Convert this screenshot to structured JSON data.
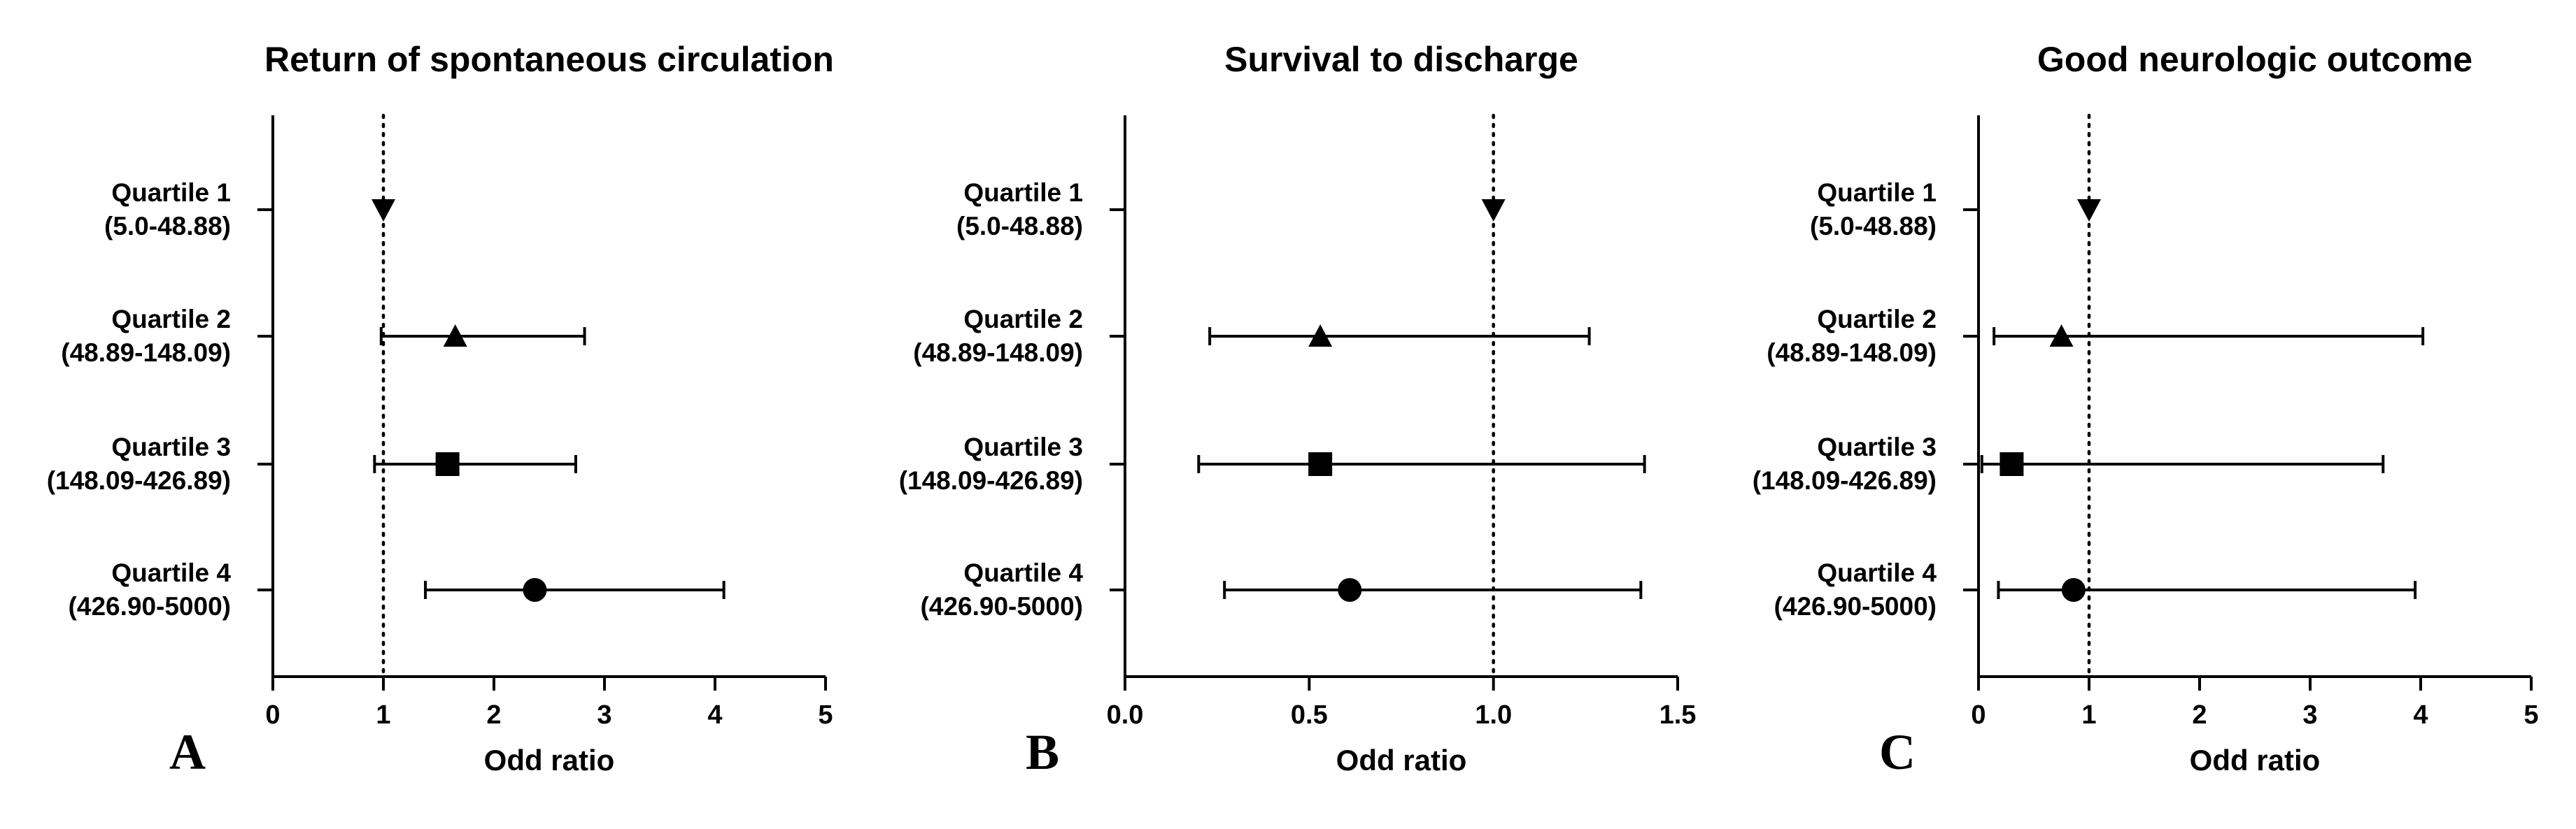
{
  "chart_data": [
    {
      "type": "forest",
      "panel": "A",
      "title": "Return of spontaneous circulation",
      "xlabel": "Odd ratio",
      "xlim": [
        0,
        5
      ],
      "xticks": [
        "0",
        "1",
        "2",
        "3",
        "4",
        "5"
      ],
      "reference_line": 1,
      "rows": [
        {
          "label": "Quartile 1",
          "range": "(5.0-48.88)",
          "or": 1.0,
          "lo": null,
          "hi": null,
          "marker": "triangle-down"
        },
        {
          "label": "Quartile 2",
          "range": "(48.89-148.09)",
          "or": 1.65,
          "lo": 0.98,
          "hi": 2.82,
          "marker": "triangle-up"
        },
        {
          "label": "Quartile 3",
          "range": "(148.09-426.89)",
          "or": 1.58,
          "lo": 0.92,
          "hi": 2.74,
          "marker": "square"
        },
        {
          "label": "Quartile 4",
          "range": "(426.90-5000)",
          "or": 2.37,
          "lo": 1.38,
          "hi": 4.08,
          "marker": "circle"
        }
      ]
    },
    {
      "type": "forest",
      "panel": "B",
      "title": "Survival to discharge",
      "xlabel": "Odd ratio",
      "xlim": [
        0,
        1.5
      ],
      "xticks": [
        "0.0",
        "0.5",
        "1.0",
        "1.5"
      ],
      "reference_line": 1,
      "rows": [
        {
          "label": "Quartile 1",
          "range": "(5.0-48.88)",
          "or": 1.0,
          "lo": null,
          "hi": null,
          "marker": "triangle-down"
        },
        {
          "label": "Quartile 2",
          "range": "(48.89-148.09)",
          "or": 0.53,
          "lo": 0.23,
          "hi": 1.26,
          "marker": "triangle-up"
        },
        {
          "label": "Quartile 3",
          "range": "(148.09-426.89)",
          "or": 0.53,
          "lo": 0.2,
          "hi": 1.41,
          "marker": "square"
        },
        {
          "label": "Quartile 4",
          "range": "(426.90-5000)",
          "or": 0.61,
          "lo": 0.27,
          "hi": 1.4,
          "marker": "circle"
        }
      ]
    },
    {
      "type": "forest",
      "panel": "C",
      "title": "Good neurologic outcome",
      "xlabel": "Odd ratio",
      "xlim": [
        0,
        5
      ],
      "xticks": [
        "0",
        "1",
        "2",
        "3",
        "4",
        "5"
      ],
      "reference_line": 1,
      "rows": [
        {
          "label": "Quartile 1",
          "range": "(5.0-48.88)",
          "or": 1.0,
          "lo": null,
          "hi": null,
          "marker": "triangle-down"
        },
        {
          "label": "Quartile 2",
          "range": "(48.89-148.09)",
          "or": 0.75,
          "lo": 0.14,
          "hi": 4.02,
          "marker": "triangle-up"
        },
        {
          "label": "Quartile 3",
          "range": "(148.09-426.89)",
          "or": 0.3,
          "lo": 0.03,
          "hi": 3.66,
          "marker": "square"
        },
        {
          "label": "Quartile 4",
          "range": "(426.90-5000)",
          "or": 0.86,
          "lo": 0.18,
          "hi": 3.95,
          "marker": "circle"
        }
      ]
    }
  ]
}
